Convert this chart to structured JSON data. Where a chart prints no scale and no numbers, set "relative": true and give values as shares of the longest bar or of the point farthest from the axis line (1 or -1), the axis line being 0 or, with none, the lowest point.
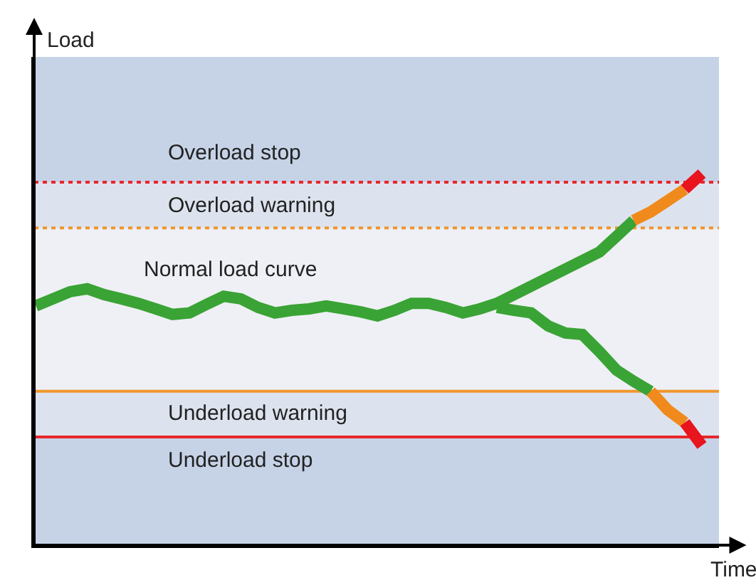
{
  "chart_data": {
    "type": "line",
    "relative": true,
    "xlabel": "Time",
    "grid": false,
    "marker": "none",
    "line_style": "solid",
    "categories": [
      null,
      null,
      null,
      null,
      null,
      null,
      null,
      null,
      null,
      null,
      null,
      null,
      null,
      null,
      null,
      null,
      null,
      null,
      null,
      null,
      null,
      null,
      null,
      null,
      null,
      null,
      null,
      null,
      null,
      null,
      null,
      null,
      null,
      null,
      null,
      null,
      null,
      null,
      null,
      null
    ],
    "series": [
      {
        "color": "#3aa335",
        "values": [
          0.644,
          0.663,
          0.682,
          0.69,
          0.674,
          0.663,
          0.651,
          0.636,
          0.621,
          0.625,
          0.648,
          0.67,
          0.663,
          0.64,
          0.625,
          0.632,
          0.636,
          0.644,
          0.636,
          0.628,
          0.617,
          0.632,
          0.651,
          0.651,
          0.64,
          0.625,
          0.636,
          0.651,
          0.674,
          0.697,
          0.72,
          0.743,
          0.766,
          0.789,
          0.831,
          0.874,
          null,
          null,
          null,
          null
        ]
      },
      {
        "color": "#f08a1c",
        "values": [
          null,
          null,
          null,
          null,
          null,
          null,
          null,
          null,
          null,
          null,
          null,
          null,
          null,
          null,
          null,
          null,
          null,
          null,
          null,
          null,
          null,
          null,
          null,
          null,
          null,
          null,
          null,
          null,
          null,
          null,
          null,
          null,
          null,
          null,
          null,
          0.874,
          0.897,
          0.927,
          0.958,
          null
        ]
      },
      {
        "color": "#e8141e",
        "values": [
          null,
          null,
          null,
          null,
          null,
          null,
          null,
          null,
          null,
          null,
          null,
          null,
          null,
          null,
          null,
          null,
          null,
          null,
          null,
          null,
          null,
          null,
          null,
          null,
          null,
          null,
          null,
          null,
          null,
          null,
          null,
          null,
          null,
          null,
          null,
          null,
          null,
          null,
          0.958,
          1
        ]
      },
      {
        "color": "#3aa335",
        "values": [
          null,
          null,
          null,
          null,
          null,
          null,
          null,
          null,
          null,
          null,
          null,
          null,
          null,
          null,
          null,
          null,
          null,
          null,
          null,
          null,
          null,
          null,
          null,
          null,
          null,
          null,
          null,
          0.64,
          0.632,
          0.625,
          0.59,
          0.571,
          0.567,
          0.521,
          0.471,
          0.441,
          0.414,
          null,
          null,
          null
        ]
      },
      {
        "color": "#f08a1c",
        "values": [
          null,
          null,
          null,
          null,
          null,
          null,
          null,
          null,
          null,
          null,
          null,
          null,
          null,
          null,
          null,
          null,
          null,
          null,
          null,
          null,
          null,
          null,
          null,
          null,
          null,
          null,
          null,
          null,
          null,
          null,
          null,
          null,
          null,
          null,
          null,
          null,
          0.414,
          0.364,
          0.33,
          null
        ]
      },
      {
        "color": "#e8141e",
        "values": [
          null,
          null,
          null,
          null,
          null,
          null,
          null,
          null,
          null,
          null,
          null,
          null,
          null,
          null,
          null,
          null,
          null,
          null,
          null,
          null,
          null,
          null,
          null,
          null,
          null,
          null,
          null,
          null,
          null,
          null,
          null,
          null,
          null,
          null,
          null,
          null,
          null,
          null,
          0.33,
          0.268
        ]
      }
    ],
    "bands": [
      {
        "axis": "y",
        "from": 0.854,
        "to": 0.977,
        "label": "Overload warning",
        "color": "#dde3ee"
      },
      {
        "axis": "y",
        "from": 0.414,
        "to": 0.854,
        "color": "#eef0f5"
      },
      {
        "axis": "y",
        "from": 0.291,
        "to": 0.414,
        "label": "Underload warning",
        "color": "#dde3ee"
      }
    ],
    "ref_lines": [
      {
        "axis": "y",
        "value": 0.977,
        "label": "Overload stop",
        "color": "#e8262a",
        "line_style": "dotted"
      },
      {
        "axis": "y",
        "value": 0.854,
        "color": "#f0962d",
        "line_style": "dotted"
      },
      {
        "axis": "y",
        "value": 0.414,
        "color": "#f0962d",
        "line_style": "solid"
      },
      {
        "axis": "y",
        "value": 0.291,
        "label": "Underload stop",
        "color": "#e8262a",
        "line_style": "solid"
      }
    ],
    "annotations": [
      "Load",
      "Normal load curve"
    ]
  }
}
